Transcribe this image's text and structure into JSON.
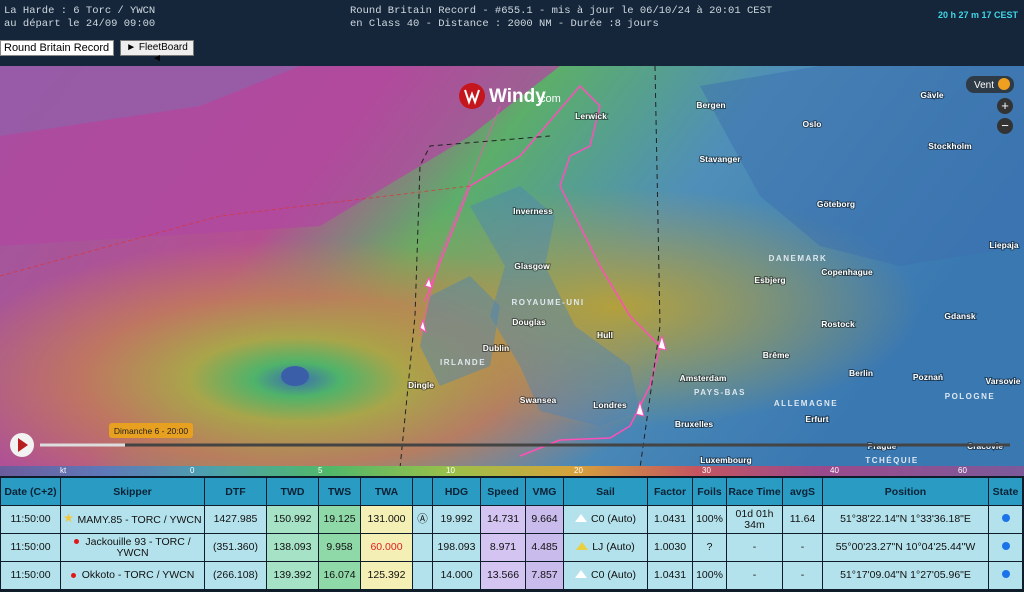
{
  "header": {
    "left_line1": "La Harde : 6 Torc / YWCN",
    "left_line2": "au départ le 24/09 09:00",
    "center_line1": "Round Britain Record - #655.1 - mis à jour le 06/10/24 à 20:01 CEST",
    "center_line2": "en Class 40 - Distance : 2000 NM - Durée :8 jours",
    "clock": "20 h 27 m 17 CEST"
  },
  "controls": {
    "race_select": "Round Britain Record",
    "fleetboard_button": "► FleetBoard ◄"
  },
  "map": {
    "brand": "Windy",
    "brand_suffix": ".com",
    "layer_button": "Vent",
    "zoom_in": "+",
    "zoom_out": "−",
    "timeline_label": "Dimanche 6 - 20:00",
    "labels": [
      "Lerwick",
      "Bergen",
      "Oslo",
      "Gävle",
      "Stavanger",
      "Stockholm",
      "Inverness",
      "Göteborg",
      "Liepaja",
      "Glasgow",
      "DANEMARK",
      "Copenhague",
      "Esbjerg",
      "ROYAUME-UNI",
      "Douglas",
      "Rostock",
      "Gdansk",
      "Dublin",
      "Hull",
      "IRLANDE",
      "Brême",
      "Amsterdam",
      "Berlin",
      "Poznań",
      "Varsovie",
      "Dingle",
      "Swansea",
      "PAYS-BAS",
      "POLOGNE",
      "Londres",
      "ALLEMAGNE",
      "Bruxelles",
      "Erfurt",
      "Prague",
      "Cracovie",
      "TCHÉQUIE",
      "Luxembourg"
    ],
    "scale": [
      "kt",
      "0",
      "5",
      "10",
      "20",
      "30",
      "40",
      "60"
    ]
  },
  "table": {
    "headers": [
      "Date (C+2)",
      "Skipper",
      "DTF",
      "TWD",
      "TWS",
      "TWA",
      "",
      "HDG",
      "Speed",
      "VMG",
      "Sail",
      "Factor",
      "Foils",
      "Race Time",
      "avgS",
      "Position",
      "State"
    ],
    "rows": [
      [
        "11:50:00",
        "MAMY.85 - TORC / YWCN",
        "1427.985",
        "150.992",
        "19.125",
        "131.000",
        "Ⓐ",
        "19.992",
        "14.731",
        "9.664",
        "C0 (Auto)",
        "1.0431",
        "100%",
        "01d 01h 34m",
        "11.64",
        "51°38'22.14\"N 1°33'36.18\"E"
      ],
      [
        "11:50:00",
        "Jackouille 93 - TORC / YWCN",
        "(351.360)",
        "138.093",
        "9.958",
        "60.000",
        "",
        "198.093",
        "8.971",
        "4.485",
        "LJ (Auto)",
        "1.0030",
        "?",
        "-",
        "-",
        "55°00'23.27\"N 10°04'25.44\"W"
      ],
      [
        "11:50:00",
        "Okkoto - TORC / YWCN",
        "(266.108)",
        "139.392",
        "16.074",
        "125.392",
        "",
        "14.000",
        "13.566",
        "7.857",
        "C0 (Auto)",
        "1.0431",
        "100%",
        "-",
        "-",
        "51°17'09.04\"N 1°27'05.96\"E"
      ]
    ]
  }
}
